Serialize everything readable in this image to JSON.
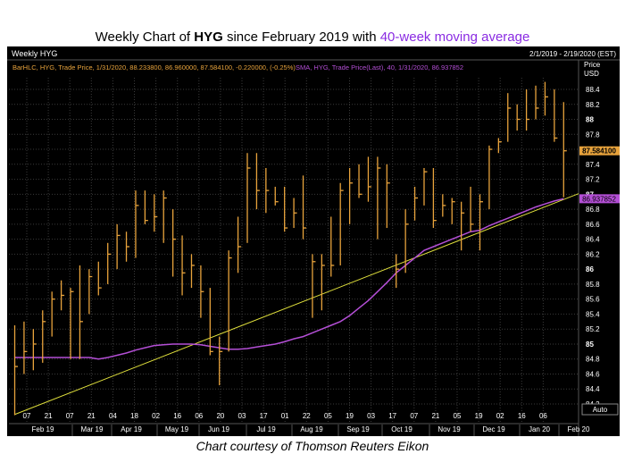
{
  "title": {
    "prefix": "Weekly Chart of ",
    "ticker": "HYG",
    "middle": " since February 2019 with ",
    "ma": "40-week moving average"
  },
  "caption": "Chart courtesy of Thomson Reuters Eikon",
  "panel": {
    "name": "Weekly HYG",
    "date_range": "2/1/2019 - 2/19/2020 (EST)",
    "legend_bar": "BarHLC, HYG, Trade Price, 1/31/2020, 88.233800, 86.960000, 87.584100, -0.220000, (-0.25%)",
    "legend_sma": "SMA, HYG, Trade Price(Last), 40, 1/31/2020, 86.937852",
    "price_header": "Price",
    "currency": "USD",
    "auto": "Auto",
    "last_price": "87.584100",
    "last_sma": "86.937852"
  },
  "colors": {
    "bars": "#e8a33c",
    "sma": "#b44fd6",
    "trend": "#e0e03c",
    "grid": "#3a3a3a"
  },
  "chart_data": {
    "type": "bar",
    "subtype": "ohlc-hlc",
    "ylim": [
      84.0,
      88.6
    ],
    "grid": true,
    "y_ticks": [
      "84.2",
      "84.4",
      "84.6",
      "84.8",
      "85",
      "85.2",
      "85.4",
      "85.6",
      "85.8",
      "86",
      "86.2",
      "86.4",
      "86.6",
      "86.8",
      "87",
      "87.2",
      "87.4",
      "87.6",
      "87.8",
      "88",
      "88.2",
      "88.4"
    ],
    "x_day_labels": [
      "07",
      "21",
      "07",
      "21",
      "04",
      "18",
      "02",
      "16",
      "06",
      "20",
      "03",
      "17",
      "01",
      "22",
      "05",
      "19",
      "03",
      "17",
      "07",
      "21",
      "05",
      "19",
      "02",
      "16",
      "06"
    ],
    "x_month_labels": [
      "Feb 19",
      "Mar 19",
      "Apr 19",
      "May 19",
      "Jun 19",
      "Jul 19",
      "Aug 19",
      "Sep 19",
      "Oct 19",
      "Nov 19",
      "Dec 19",
      "Jan 20",
      "Feb 20"
    ],
    "bars": [
      {
        "h": 85.25,
        "l": 84.05,
        "c": 84.7
      },
      {
        "h": 85.3,
        "l": 84.6,
        "c": 84.9
      },
      {
        "h": 85.2,
        "l": 84.65,
        "c": 85.0
      },
      {
        "h": 85.45,
        "l": 84.75,
        "c": 85.3
      },
      {
        "h": 85.7,
        "l": 85.1,
        "c": 85.6
      },
      {
        "h": 85.85,
        "l": 85.45,
        "c": 85.65
      },
      {
        "h": 85.75,
        "l": 84.8,
        "c": 85.7
      },
      {
        "h": 86.05,
        "l": 84.8,
        "c": 85.3
      },
      {
        "h": 86.0,
        "l": 85.4,
        "c": 85.9
      },
      {
        "h": 86.1,
        "l": 85.65,
        "c": 85.75
      },
      {
        "h": 86.35,
        "l": 85.8,
        "c": 86.2
      },
      {
        "h": 86.6,
        "l": 86.0,
        "c": 86.45
      },
      {
        "h": 86.5,
        "l": 86.1,
        "c": 86.3
      },
      {
        "h": 87.05,
        "l": 86.15,
        "c": 86.85
      },
      {
        "h": 87.05,
        "l": 86.6,
        "c": 86.65
      },
      {
        "h": 87.0,
        "l": 86.5,
        "c": 86.7
      },
      {
        "h": 87.05,
        "l": 86.35,
        "c": 86.95
      },
      {
        "h": 86.8,
        "l": 85.9,
        "c": 86.4
      },
      {
        "h": 86.45,
        "l": 85.65,
        "c": 85.95
      },
      {
        "h": 86.2,
        "l": 85.75,
        "c": 86.05
      },
      {
        "h": 86.05,
        "l": 85.35,
        "c": 85.7
      },
      {
        "h": 85.75,
        "l": 84.85,
        "c": 84.9
      },
      {
        "h": 85.1,
        "l": 84.45,
        "c": 84.9
      },
      {
        "h": 86.25,
        "l": 84.9,
        "c": 86.15
      },
      {
        "h": 86.7,
        "l": 85.95,
        "c": 86.3
      },
      {
        "h": 87.55,
        "l": 86.35,
        "c": 87.35
      },
      {
        "h": 87.55,
        "l": 86.8,
        "c": 87.05
      },
      {
        "h": 87.35,
        "l": 86.75,
        "c": 87.05
      },
      {
        "h": 87.1,
        "l": 86.85,
        "c": 86.9
      },
      {
        "h": 87.1,
        "l": 86.5,
        "c": 86.55
      },
      {
        "h": 86.95,
        "l": 86.55,
        "c": 86.75
      },
      {
        "h": 87.25,
        "l": 86.4,
        "c": 86.55
      },
      {
        "h": 86.2,
        "l": 85.35,
        "c": 86.1
      },
      {
        "h": 86.2,
        "l": 85.45,
        "c": 86.05
      },
      {
        "h": 86.7,
        "l": 85.9,
        "c": 86.05
      },
      {
        "h": 87.15,
        "l": 86.05,
        "c": 87.05
      },
      {
        "h": 87.35,
        "l": 86.6,
        "c": 87.15
      },
      {
        "h": 87.4,
        "l": 86.95,
        "c": 87.0
      },
      {
        "h": 87.5,
        "l": 86.9,
        "c": 87.1
      },
      {
        "h": 87.5,
        "l": 86.4,
        "c": 87.35
      },
      {
        "h": 87.4,
        "l": 86.55,
        "c": 87.15
      },
      {
        "h": 86.2,
        "l": 85.75,
        "c": 86.0
      },
      {
        "h": 86.8,
        "l": 85.95,
        "c": 86.6
      },
      {
        "h": 87.1,
        "l": 86.65,
        "c": 86.95
      },
      {
        "h": 87.35,
        "l": 86.85,
        "c": 87.3
      },
      {
        "h": 87.35,
        "l": 86.55,
        "c": 86.65
      },
      {
        "h": 87.0,
        "l": 86.7,
        "c": 86.85
      },
      {
        "h": 86.95,
        "l": 86.6,
        "c": 86.9
      },
      {
        "h": 86.9,
        "l": 86.25,
        "c": 86.75
      },
      {
        "h": 87.1,
        "l": 86.5,
        "c": 86.6
      },
      {
        "h": 87.0,
        "l": 86.25,
        "c": 86.9
      },
      {
        "h": 87.65,
        "l": 86.8,
        "c": 87.6
      },
      {
        "h": 87.75,
        "l": 87.55,
        "c": 87.7
      },
      {
        "h": 88.35,
        "l": 87.7,
        "c": 88.15
      },
      {
        "h": 88.2,
        "l": 87.85,
        "c": 88.0
      },
      {
        "h": 88.4,
        "l": 87.85,
        "c": 88.0
      },
      {
        "h": 88.45,
        "l": 88.0,
        "c": 88.15
      },
      {
        "h": 88.5,
        "l": 88.05,
        "c": 88.3
      },
      {
        "h": 88.4,
        "l": 87.7,
        "c": 87.75
      },
      {
        "h": 88.23,
        "l": 86.96,
        "c": 87.58
      }
    ],
    "sma": [
      84.82,
      84.82,
      84.82,
      84.82,
      84.82,
      84.82,
      84.82,
      84.82,
      84.82,
      84.8,
      84.82,
      84.85,
      84.88,
      84.92,
      84.95,
      84.98,
      84.99,
      85.0,
      85.0,
      85.0,
      84.99,
      84.97,
      84.95,
      84.93,
      84.93,
      84.94,
      84.96,
      84.98,
      85.0,
      85.03,
      85.07,
      85.1,
      85.15,
      85.2,
      85.25,
      85.3,
      85.38,
      85.48,
      85.58,
      85.7,
      85.82,
      85.95,
      86.05,
      86.15,
      86.25,
      86.3,
      86.35,
      86.4,
      86.45,
      86.5,
      86.52,
      86.58,
      86.63,
      86.68,
      86.73,
      86.78,
      86.83,
      86.87,
      86.91,
      86.94
    ],
    "trendline": [
      {
        "i": 0,
        "v": 84.06
      },
      {
        "i": 59,
        "v": 86.93
      }
    ]
  }
}
